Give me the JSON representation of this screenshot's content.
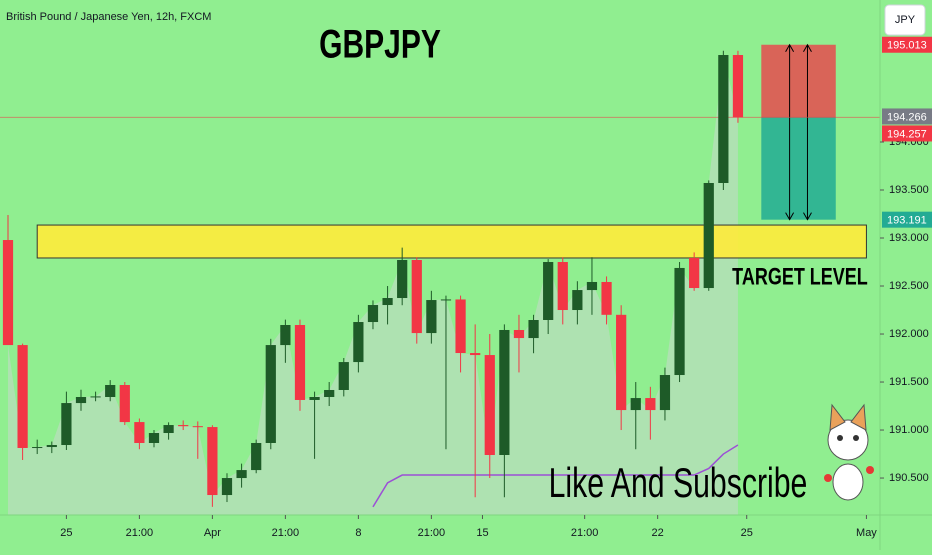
{
  "chart_data": {
    "type": "candlestick",
    "title": "British Pound / Japanese Yen, 12h, FXCM",
    "symbol_title": "GBPJPY",
    "currency": "JPY",
    "annotations": [
      "TARGET LEVEL",
      "Like And Subscribe"
    ],
    "up_color": "#1e5b28",
    "down_color": "#f23645",
    "area_color": "#b5dfb9",
    "candles": {
      "open": [
        192.979,
        191.885,
        190.813,
        190.823,
        190.844,
        191.281,
        191.344,
        191.344,
        191.469,
        191.083,
        190.865,
        190.969,
        191.052,
        191.04,
        191.031,
        190.323,
        190.5,
        190.583,
        190.865,
        191.885,
        192.094,
        191.313,
        191.344,
        191.417,
        191.708,
        192.125,
        192.302,
        192.375,
        192.771,
        192.01,
        192.354,
        192.36,
        191.802,
        191.781,
        190.74,
        192.042,
        191.958,
        192.146,
        192.75,
        192.25,
        192.458,
        192.542,
        192.2,
        191.208,
        191.333,
        191.208,
        191.573,
        192.792,
        192.479,
        193.573,
        194.906
      ],
      "high": [
        193.24,
        191.9,
        190.9,
        190.88,
        191.4,
        191.42,
        191.4,
        191.52,
        191.5,
        191.12,
        191.0,
        191.08,
        191.1,
        191.09,
        191.05,
        190.55,
        190.65,
        190.9,
        191.95,
        192.15,
        192.15,
        191.4,
        191.5,
        191.75,
        192.2,
        192.35,
        192.5,
        192.9,
        192.8,
        192.45,
        192.4,
        192.4,
        192.1,
        192.0,
        192.1,
        192.2,
        192.2,
        192.78,
        192.8,
        192.55,
        192.8,
        192.6,
        192.3,
        191.5,
        191.45,
        191.65,
        192.75,
        192.85,
        193.6,
        194.95,
        194.95
      ],
      "low": [
        191.885,
        190.688,
        190.75,
        190.76,
        190.792,
        191.2,
        191.3,
        191.3,
        191.052,
        190.8,
        190.82,
        190.9,
        191.0,
        190.7,
        190.2,
        190.25,
        190.4,
        190.55,
        190.8,
        191.7,
        191.2,
        190.7,
        191.25,
        191.35,
        191.6,
        192.05,
        192.1,
        192.3,
        191.9,
        191.9,
        190.8,
        191.6,
        190.3,
        190.5,
        190.3,
        191.6,
        191.8,
        192.0,
        192.1,
        192.1,
        192.2,
        192.1,
        191.0,
        190.8,
        190.9,
        191.1,
        191.5,
        192.45,
        192.45,
        193.5,
        194.2
      ],
      "close": [
        191.885,
        190.813,
        190.823,
        190.844,
        191.281,
        191.344,
        191.35,
        191.469,
        191.083,
        190.865,
        190.969,
        191.052,
        191.04,
        191.031,
        190.323,
        190.5,
        190.583,
        190.865,
        191.885,
        192.094,
        191.313,
        191.344,
        191.417,
        191.708,
        192.125,
        192.302,
        192.375,
        192.771,
        192.01,
        192.354,
        192.36,
        191.802,
        191.781,
        190.74,
        192.042,
        191.958,
        192.146,
        192.75,
        192.25,
        192.458,
        192.542,
        192.2,
        191.208,
        191.333,
        191.208,
        191.573,
        192.688,
        192.479,
        193.573,
        194.906,
        194.257
      ]
    },
    "indicator": {
      "color": "#9c4fd6",
      "values": [
        null,
        null,
        null,
        null,
        null,
        null,
        null,
        null,
        null,
        null,
        null,
        null,
        null,
        null,
        null,
        null,
        null,
        null,
        null,
        null,
        null,
        null,
        null,
        null,
        null,
        190.2,
        190.45,
        190.531,
        190.531,
        190.531,
        190.531,
        190.531,
        190.531,
        190.531,
        190.531,
        190.531,
        190.531,
        190.531,
        190.531,
        190.531,
        190.531,
        190.531,
        190.531,
        190.531,
        190.531,
        190.531,
        190.531,
        190.531,
        190.6,
        190.75,
        190.844
      ]
    },
    "target_zone": {
      "low": 192.792,
      "high": 193.135,
      "from": 2,
      "to": 58.8,
      "color": "#ffeb3b"
    },
    "position": {
      "from": 51.6,
      "to": 56.7
    },
    "price_tags": [
      {
        "value": 195.013,
        "label": "195.013",
        "color": "#f23645"
      },
      {
        "value": 194.266,
        "label": "194.266",
        "color": "#787b86"
      },
      {
        "value": 194.257,
        "label": "194.257",
        "color": "#f23645"
      },
      {
        "value": 193.191,
        "label": "193.191",
        "color": "#22ab94"
      }
    ],
    "xlim": [
      -0.548,
      59.73
    ],
    "xticks": [
      {
        "value": 4,
        "label": "25"
      },
      {
        "value": 9,
        "label": "21:00"
      },
      {
        "value": 14,
        "label": "Apr"
      },
      {
        "value": 19,
        "label": "21:00"
      },
      {
        "value": 24,
        "label": "8"
      },
      {
        "value": 29,
        "label": "21:00"
      },
      {
        "value": 32.5,
        "label": "15"
      },
      {
        "value": 39.5,
        "label": "21:00"
      },
      {
        "value": 44.5,
        "label": "22"
      },
      {
        "value": 50.6,
        "label": "25"
      },
      {
        "value": 58.8,
        "label": "May"
      }
    ],
    "ylim": [
      190.115,
      195.479
    ],
    "yticks": [
      {
        "value": 194,
        "label": "194.000"
      },
      {
        "value": 193.5,
        "label": "193.500"
      },
      {
        "value": 193,
        "label": "193.000"
      },
      {
        "value": 192.5,
        "label": "192.500"
      },
      {
        "value": 192,
        "label": "192.000"
      },
      {
        "value": 191.5,
        "label": "191.500"
      },
      {
        "value": 191,
        "label": "191.000"
      },
      {
        "value": 190.5,
        "label": "190.500"
      }
    ]
  }
}
